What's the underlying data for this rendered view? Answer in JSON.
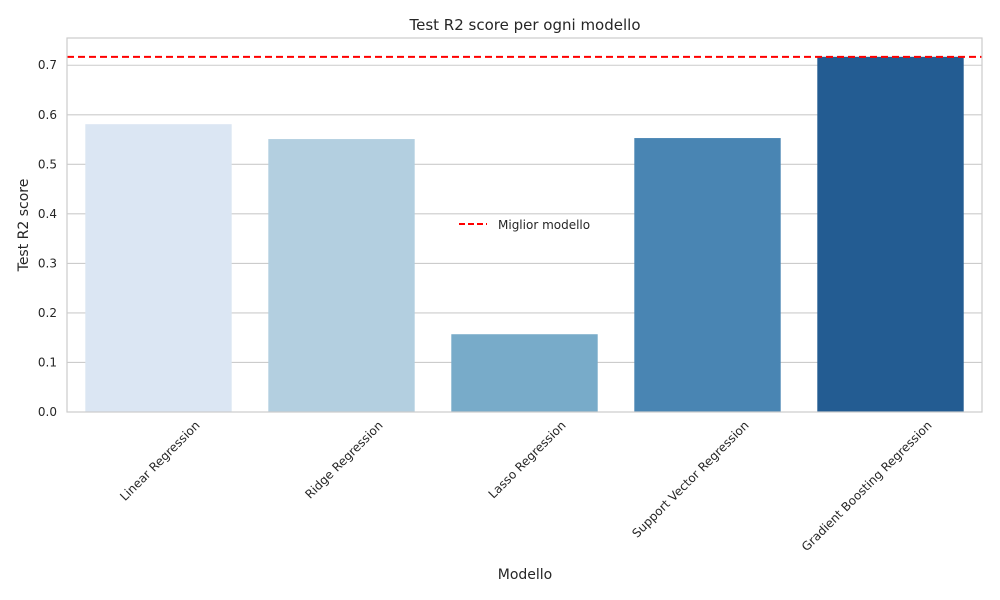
{
  "chart_data": {
    "type": "bar",
    "title": "Test R2 score per ogni modello",
    "xlabel": "Modello",
    "ylabel": "Test R2 score",
    "categories": [
      "Linear Regression",
      "Ridge Regression",
      "Lasso Regression",
      "Support Vector Regression",
      "Gradient Boosting Regression"
    ],
    "values": [
      0.581,
      0.551,
      0.157,
      0.553,
      0.717
    ],
    "colors": [
      "#dbe6f3",
      "#b3cfe0",
      "#78abc9",
      "#4985b3",
      "#235c92"
    ],
    "ylim": [
      0,
      0.755
    ],
    "yticks": [
      "0.0",
      "0.1",
      "0.2",
      "0.3",
      "0.4",
      "0.5",
      "0.6",
      "0.7"
    ],
    "reference_line": {
      "value": 0.717,
      "label": "Miglior modello",
      "color": "#ff0000",
      "style": "dashed"
    },
    "grid": true,
    "legend_position": "center"
  }
}
